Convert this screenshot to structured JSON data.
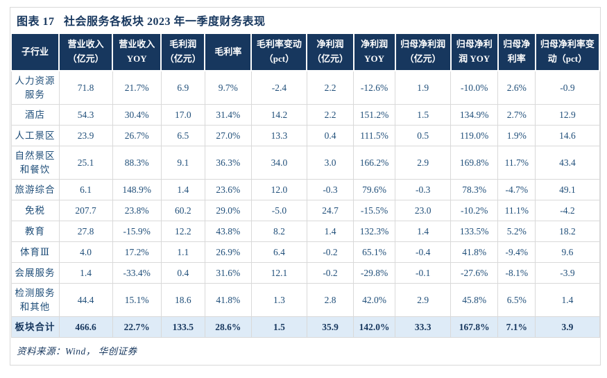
{
  "figure": {
    "title": "图表 17   社会服务各板块 2023 年一季度财务表现",
    "source_note": "资料来源：Wind， 华创证券"
  },
  "colors": {
    "header_bg": "#17375E",
    "title_text": "#17375E",
    "body_text": "#1F4E79",
    "total_row_bg": "#DEEBF7",
    "grid_border": "#D9D9D9"
  },
  "table": {
    "columns": [
      "子行业",
      "营业收入 （亿元）",
      "营业收入 YOY",
      "毛利润 （亿元）",
      "毛利率",
      "毛利率变动 （pct）",
      "净利润 （亿元）",
      "净利润 YOY",
      "归母净利润 （亿元）",
      "归母净利润 YOY",
      "归母净利率",
      "归母净利率变动（pct）"
    ],
    "rows": [
      {
        "label": "人力资源服务",
        "values": [
          "71.8",
          "21.7%",
          "6.9",
          "9.7%",
          "-2.4",
          "2.2",
          "-12.6%",
          "1.9",
          "-10.0%",
          "2.6%",
          "-0.9"
        ]
      },
      {
        "label": "酒店",
        "values": [
          "54.3",
          "30.4%",
          "17.0",
          "31.4%",
          "14.2",
          "2.2",
          "151.2%",
          "1.5",
          "134.9%",
          "2.7%",
          "12.9"
        ]
      },
      {
        "label": "人工景区",
        "values": [
          "23.9",
          "26.7%",
          "6.5",
          "27.0%",
          "13.3",
          "0.4",
          "111.5%",
          "0.5",
          "119.0%",
          "1.9%",
          "14.6"
        ]
      },
      {
        "label": "自然景区和餐饮",
        "values": [
          "25.1",
          "88.3%",
          "9.1",
          "36.3%",
          "34.0",
          "3.0",
          "166.2%",
          "2.9",
          "169.8%",
          "11.7%",
          "43.4"
        ]
      },
      {
        "label": "旅游综合",
        "values": [
          "6.1",
          "148.9%",
          "1.4",
          "23.6%",
          "12.0",
          "-0.3",
          "79.6%",
          "-0.3",
          "78.3%",
          "-4.7%",
          "49.1"
        ]
      },
      {
        "label": "免税",
        "values": [
          "207.7",
          "23.8%",
          "60.2",
          "29.0%",
          "-5.0",
          "24.7",
          "-15.5%",
          "23.0",
          "-10.2%",
          "11.1%",
          "-4.2"
        ]
      },
      {
        "label": "教育",
        "values": [
          "27.8",
          "-15.9%",
          "12.2",
          "43.8%",
          "8.2",
          "1.4",
          "132.3%",
          "1.4",
          "133.5%",
          "5.2%",
          "18.2"
        ]
      },
      {
        "label": "体育Ⅲ",
        "values": [
          "4.0",
          "17.2%",
          "1.1",
          "26.9%",
          "6.4",
          "-0.2",
          "65.1%",
          "-0.4",
          "41.8%",
          "-9.4%",
          "9.6"
        ]
      },
      {
        "label": "会展服务",
        "values": [
          "1.4",
          "-33.4%",
          "0.4",
          "31.6%",
          "12.1",
          "-0.2",
          "-29.8%",
          "-0.1",
          "-27.6%",
          "-8.1%",
          "-3.9"
        ]
      },
      {
        "label": "检测服务和其他",
        "values": [
          "44.4",
          "15.1%",
          "18.6",
          "41.8%",
          "1.3",
          "2.8",
          "42.0%",
          "2.9",
          "45.8%",
          "6.5%",
          "1.4"
        ]
      }
    ],
    "total_row": {
      "label": "板块合计",
      "values": [
        "466.6",
        "22.7%",
        "133.5",
        "28.6%",
        "1.5",
        "35.9",
        "142.0%",
        "33.3",
        "167.8%",
        "7.1%",
        "3.9"
      ]
    }
  }
}
